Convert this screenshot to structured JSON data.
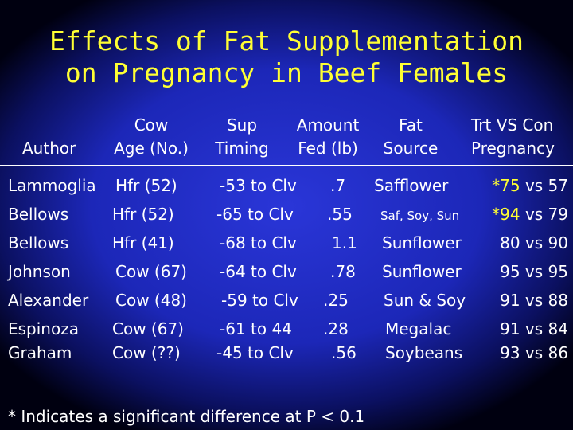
{
  "title": {
    "line1": "Effects of Fat Supplementation",
    "line2": "on Pregnancy in Beef Females"
  },
  "headers": {
    "author": "Author",
    "cow_line1": "Cow",
    "cow_line2": "Age (No.)",
    "sup_line1": "Sup",
    "sup_line2": "Timing",
    "amount_line1": "Amount",
    "amount_line2": "Fed (lb)",
    "fat_line1": "Fat",
    "fat_line2": "Source",
    "trt_line1": "Trt VS Con",
    "trt_line2": "Pregnancy"
  },
  "rows": [
    {
      "author": "Lammoglia",
      "cow": "Hfr (52)",
      "timing": "-53 to Clv",
      "amount": ".7",
      "source": "Safflower",
      "star": "*75",
      "trt": "vs 57"
    },
    {
      "author": "Bellows",
      "cow": "Hfr (52)",
      "timing": "-65 to Clv",
      "amount": ".55",
      "source": "Saf, Soy, Sun",
      "star": "*94",
      "trt": "vs 79"
    },
    {
      "author": "Bellows",
      "cow": "Hfr (41)",
      "timing": "-68 to Clv",
      "amount": "1.1",
      "source": "Sunflower",
      "star": "",
      "trt": "80 vs 90"
    },
    {
      "author": "Johnson",
      "cow": "Cow (67)",
      "timing": "-64 to Clv",
      "amount": ".78",
      "source": "Sunflower",
      "star": "",
      "trt": "95 vs 95"
    },
    {
      "author": "Alexander",
      "cow": "Cow (48)",
      "timing": "-59 to Clv",
      "amount": ".25",
      "source": "Sun & Soy",
      "star": "",
      "trt": "91 vs 88"
    },
    {
      "author": "Espinoza",
      "cow": "Cow (67)",
      "timing": "-61 to 44",
      "amount": ".28",
      "source": "Megalac",
      "star": "",
      "trt": "91 vs 84"
    },
    {
      "author": "Graham",
      "cow": "Cow (??)",
      "timing": "-45 to Clv",
      "amount": ".56",
      "source": "Soybeans",
      "star": "",
      "trt": "93 vs 86"
    }
  ],
  "footnote": "* Indicates a significant difference at P < 0.1",
  "colors": {
    "title": "#ffff33",
    "text": "#ffffff",
    "background": "#1c27b8"
  }
}
